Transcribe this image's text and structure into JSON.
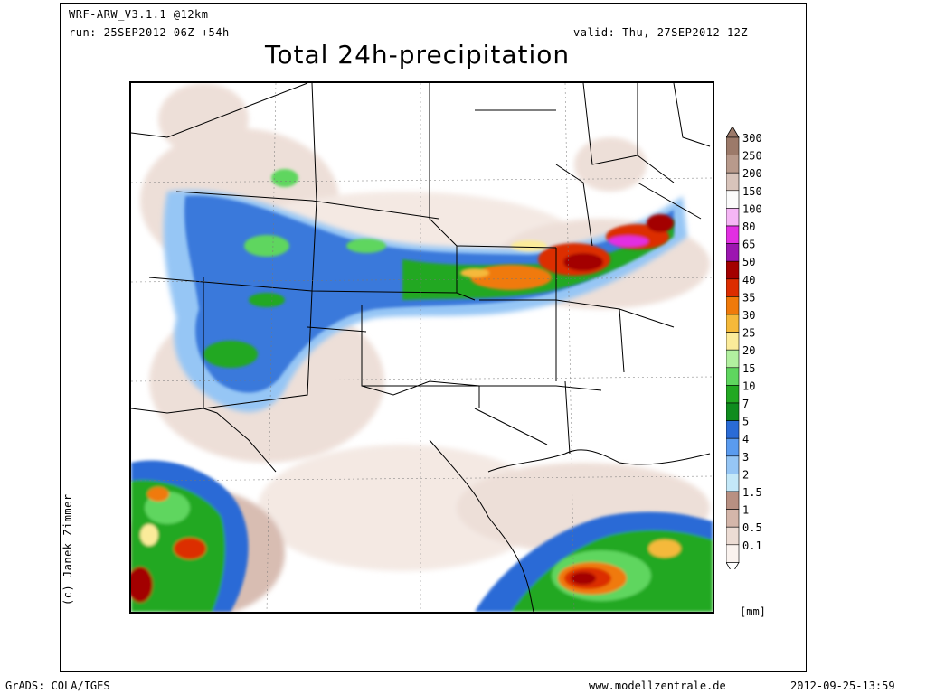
{
  "header": {
    "model": "WRF-ARW_V3.1.1 @12km",
    "run": "run: 25SEP2012 06Z +54h",
    "valid": "valid: Thu, 27SEP2012 12Z",
    "title": "Total 24h-precipitation"
  },
  "credit": "(c) Janek Zimmer",
  "footer": {
    "left": "GrADS: COLA/IGES",
    "center": "www.modellzentrale.de",
    "right": "2012-09-25-13:59"
  },
  "legend": {
    "unit": "[mm]",
    "levels": [
      {
        "label": "300",
        "color": "#9c7a6a"
      },
      {
        "label": "250",
        "color": "#b89a8c"
      },
      {
        "label": "200",
        "color": "#d8c4bb"
      },
      {
        "label": "150",
        "color": "#fbfbfb"
      },
      {
        "label": "100",
        "color": "#f5b6f5"
      },
      {
        "label": "80",
        "color": "#e22fe2"
      },
      {
        "label": "65",
        "color": "#9c16b0"
      },
      {
        "label": "50",
        "color": "#a30000"
      },
      {
        "label": "40",
        "color": "#dc2d00"
      },
      {
        "label": "35",
        "color": "#f07a0a"
      },
      {
        "label": "30",
        "color": "#f5b93a"
      },
      {
        "label": "25",
        "color": "#fbeb9a"
      },
      {
        "label": "20",
        "color": "#b2f0a0"
      },
      {
        "label": "15",
        "color": "#5fd65f"
      },
      {
        "label": "10",
        "color": "#22a822"
      },
      {
        "label": "7",
        "color": "#0f8c1e"
      },
      {
        "label": "5",
        "color": "#2a6bd6"
      },
      {
        "label": "4",
        "color": "#5a9bef"
      },
      {
        "label": "3",
        "color": "#96c6f5"
      },
      {
        "label": "2",
        "color": "#c4e8f8"
      },
      {
        "label": "1.5",
        "color": "#b89082"
      },
      {
        "label": "1",
        "color": "#d4b6aa"
      },
      {
        "label": "0.5",
        "color": "#ecdcd4"
      },
      {
        "label": "0.1",
        "color": "#faf3ef"
      }
    ]
  }
}
